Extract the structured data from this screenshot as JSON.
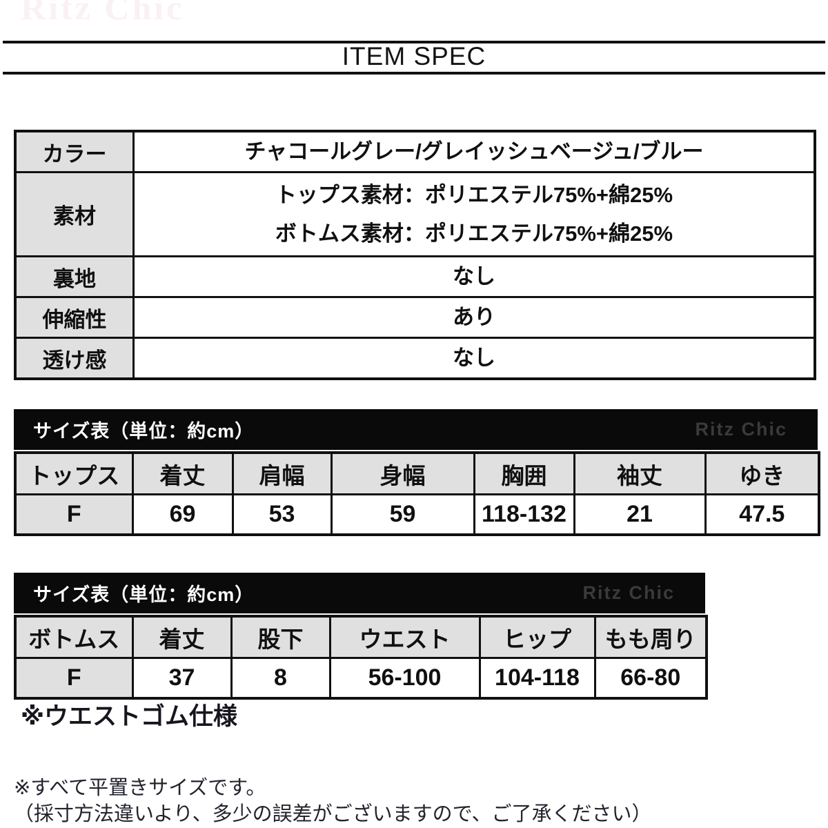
{
  "watermark": "Ritz Chic",
  "title": "ITEM SPEC",
  "colors": {
    "band_background": "#0a0a0a",
    "band_text": "#ffffff",
    "band_brand_text": "#3a3a3a",
    "header_cell_gray": "#e0e0e0",
    "border_black": "#101010",
    "watermark_pink": "#faf1f3"
  },
  "spec_table": {
    "rows": [
      {
        "label": "カラー",
        "values": [
          "チャコールグレー/グレイッシュベージュ/ブルー"
        ]
      },
      {
        "label": "素材",
        "values": [
          "トップス素材：ポリエステル75%+綿25%",
          "ボトムス素材：ポリエステル75%+綿25%"
        ]
      },
      {
        "label": "裏地",
        "values": [
          "なし"
        ]
      },
      {
        "label": "伸縮性",
        "values": [
          "あり"
        ]
      },
      {
        "label": "透け感",
        "values": [
          "なし"
        ]
      }
    ]
  },
  "size_tables": [
    {
      "header": "サイズ表（単位：約cm）",
      "brand": "Ritz Chic",
      "columns": [
        "トップス",
        "着丈",
        "肩幅",
        "身幅",
        "胸囲",
        "袖丈",
        "ゆき"
      ],
      "rows": [
        [
          "F",
          "69",
          "53",
          "59",
          "118-132",
          "21",
          "47.5"
        ]
      ]
    },
    {
      "header": "サイズ表（単位：約cm）",
      "brand": "Ritz Chic",
      "columns": [
        "ボトムス",
        "着丈",
        "股下",
        "ウエスト",
        "ヒップ",
        "もも周り"
      ],
      "rows": [
        [
          "F",
          "37",
          "8",
          "56-100",
          "104-118",
          "66-80"
        ]
      ]
    }
  ],
  "notes": {
    "waist": "※ウエストゴム仕様",
    "flat_size": "※すべて平置きサイズです。",
    "tolerance": "（採寸方法違いより、多少の誤差がございますので、ご了承ください）"
  }
}
